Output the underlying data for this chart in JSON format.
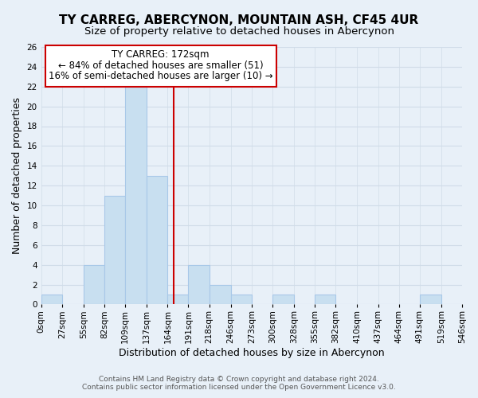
{
  "title": "TY CARREG, ABERCYNON, MOUNTAIN ASH, CF45 4UR",
  "subtitle": "Size of property relative to detached houses in Abercynon",
  "xlabel": "Distribution of detached houses by size in Abercynon",
  "ylabel": "Number of detached properties",
  "bin_edges": [
    0,
    27,
    55,
    82,
    109,
    137,
    164,
    191,
    218,
    246,
    273,
    300,
    328,
    355,
    382,
    410,
    437,
    464,
    491,
    519,
    546
  ],
  "bin_counts": [
    1,
    0,
    4,
    11,
    22,
    13,
    1,
    4,
    2,
    1,
    0,
    1,
    0,
    1,
    0,
    0,
    0,
    0,
    1,
    0
  ],
  "bar_color": "#c8dff0",
  "bar_edgecolor": "#a8c8e8",
  "property_line_x": 172,
  "property_line_color": "#cc0000",
  "ylim": [
    0,
    26
  ],
  "yticks": [
    0,
    2,
    4,
    6,
    8,
    10,
    12,
    14,
    16,
    18,
    20,
    22,
    24,
    26
  ],
  "xtick_labels": [
    "0sqm",
    "27sqm",
    "55sqm",
    "82sqm",
    "109sqm",
    "137sqm",
    "164sqm",
    "191sqm",
    "218sqm",
    "246sqm",
    "273sqm",
    "300sqm",
    "328sqm",
    "355sqm",
    "382sqm",
    "410sqm",
    "437sqm",
    "464sqm",
    "491sqm",
    "519sqm",
    "546sqm"
  ],
  "annotation_box_text_line1": "TY CARREG: 172sqm",
  "annotation_box_text_line2": "← 84% of detached houses are smaller (51)",
  "annotation_box_text_line3": "16% of semi-detached houses are larger (10) →",
  "annotation_box_color": "#ffffff",
  "annotation_box_edgecolor": "#cc0000",
  "footer_line1": "Contains HM Land Registry data © Crown copyright and database right 2024.",
  "footer_line2": "Contains public sector information licensed under the Open Government Licence v3.0.",
  "grid_color": "#d0dce8",
  "background_color": "#e8f0f8",
  "title_fontsize": 11,
  "subtitle_fontsize": 9.5,
  "axis_label_fontsize": 9,
  "tick_fontsize": 7.5,
  "annotation_fontsize": 8.5,
  "footer_fontsize": 6.5
}
